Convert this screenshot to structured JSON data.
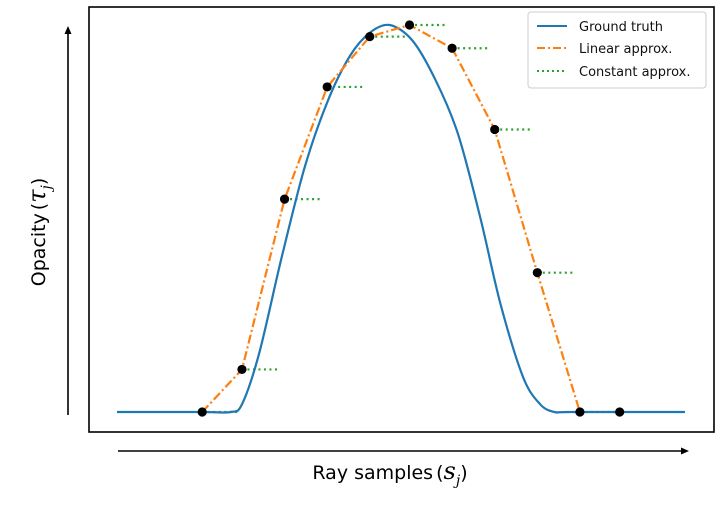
{
  "chart_data": {
    "type": "line",
    "title": "",
    "xlabel": "Ray samples",
    "xlabel_symbol": "s",
    "xlabel_subscript": "j",
    "ylabel": "Opacity",
    "ylabel_symbol": "τ",
    "ylabel_subscript": "j",
    "xlim": [
      0,
      1
    ],
    "ylim": [
      0,
      1
    ],
    "grid": false,
    "ticks": false,
    "legend_position": "top-right",
    "colors": {
      "ground_truth": "#1f77b4",
      "linear": "#ff7f0e",
      "constant": "#2ca02c",
      "samples": "#000000"
    },
    "series": [
      {
        "name": "Ground truth",
        "style": "solid",
        "x": [
          0.0,
          0.15,
          0.2,
          0.22,
          0.25,
          0.29,
          0.33,
          0.37,
          0.41,
          0.445,
          0.48,
          0.52,
          0.56,
          0.6,
          0.64,
          0.675,
          0.715,
          0.745,
          0.77,
          0.8,
          1.0
        ],
        "y": [
          0.0,
          0.0,
          0.0,
          0.02,
          0.15,
          0.4,
          0.63,
          0.8,
          0.92,
          0.98,
          1.0,
          0.96,
          0.86,
          0.72,
          0.5,
          0.28,
          0.09,
          0.02,
          0.0,
          0.0,
          0.0
        ]
      },
      {
        "name": "Linear approx.",
        "style": "dashdot",
        "x": [
          0.15,
          0.22,
          0.295,
          0.37,
          0.445,
          0.515,
          0.59,
          0.665,
          0.74,
          0.815
        ],
        "y": [
          0.0,
          0.11,
          0.55,
          0.84,
          0.97,
          1.0,
          0.94,
          0.73,
          0.36,
          0.0
        ]
      },
      {
        "name": "Constant approx.",
        "style": "dotted",
        "x": [
          0.15,
          0.22,
          0.295,
          0.37,
          0.445,
          0.515,
          0.59,
          0.665,
          0.74,
          0.815
        ],
        "y": [
          0.0,
          0.11,
          0.55,
          0.84,
          0.97,
          1.0,
          0.94,
          0.73,
          0.36,
          0.0
        ]
      }
    ],
    "samples": {
      "x": [
        0.15,
        0.22,
        0.295,
        0.37,
        0.445,
        0.515,
        0.59,
        0.665,
        0.74,
        0.815,
        0.885
      ],
      "y": [
        0.0,
        0.11,
        0.55,
        0.84,
        0.97,
        1.0,
        0.94,
        0.73,
        0.36,
        0.0,
        0.0
      ]
    }
  }
}
